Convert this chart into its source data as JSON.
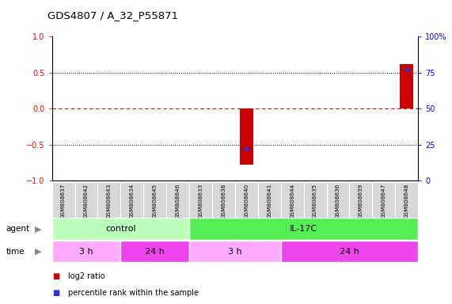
{
  "title": "GDS4807 / A_32_P55871",
  "samples": [
    "GSM808637",
    "GSM808642",
    "GSM808643",
    "GSM808634",
    "GSM808645",
    "GSM808646",
    "GSM808633",
    "GSM808638",
    "GSM808640",
    "GSM808641",
    "GSM808644",
    "GSM808635",
    "GSM808636",
    "GSM808639",
    "GSM808647",
    "GSM808648"
  ],
  "log2_ratio": [
    0.0,
    0.0,
    0.0,
    0.0,
    0.0,
    0.0,
    0.0,
    0.0,
    -0.78,
    0.0,
    0.0,
    0.0,
    0.0,
    0.0,
    0.0,
    0.62
  ],
  "percentile": [
    50,
    50,
    50,
    50,
    50,
    50,
    50,
    50,
    22,
    50,
    50,
    50,
    50,
    50,
    50,
    77
  ],
  "ylim": [
    -1,
    1
  ],
  "yticks_left": [
    -1,
    -0.5,
    0,
    0.5,
    1
  ],
  "yticks_right": [
    0,
    25,
    50,
    75,
    100
  ],
  "bar_color": "#cc0000",
  "percentile_color": "#3333cc",
  "dotted_hlines": [
    -0.5,
    0.5
  ],
  "agent_row": [
    {
      "label": "control",
      "start": 0,
      "end": 6,
      "color": "#bbffbb"
    },
    {
      "label": "IL-17C",
      "start": 6,
      "end": 16,
      "color": "#55ee55"
    }
  ],
  "time_row": [
    {
      "label": "3 h",
      "start": 0,
      "end": 3,
      "color": "#ffaaff"
    },
    {
      "label": "24 h",
      "start": 3,
      "end": 6,
      "color": "#ee44ee"
    },
    {
      "label": "3 h",
      "start": 6,
      "end": 10,
      "color": "#ffaaff"
    },
    {
      "label": "24 h",
      "start": 10,
      "end": 16,
      "color": "#ee44ee"
    }
  ],
  "legend_items": [
    {
      "color": "#cc0000",
      "label": "log2 ratio"
    },
    {
      "color": "#3333cc",
      "label": "percentile rank within the sample"
    }
  ],
  "bar_width": 0.6,
  "background_color": "#ffffff",
  "plot_bg": "#ffffff",
  "sample_box_color": "#d8d8d8",
  "sample_box_border": "#aaaaaa"
}
